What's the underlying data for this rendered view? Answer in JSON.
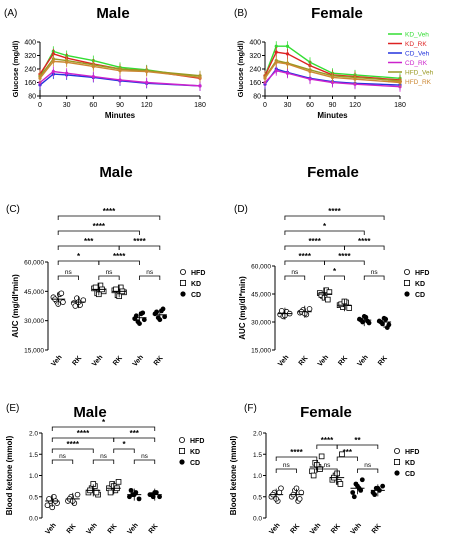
{
  "panels": [
    {
      "id": "A",
      "letter": "(A)",
      "title": "Male"
    },
    {
      "id": "B",
      "letter": "(B)",
      "title": "Female"
    },
    {
      "id": "C",
      "letter": "(C)",
      "title": "Male"
    },
    {
      "id": "D",
      "letter": "(D)",
      "title": "Female"
    },
    {
      "id": "E",
      "letter": "(E)",
      "title": "Male"
    },
    {
      "id": "F",
      "letter": "(F)",
      "title": "Female"
    }
  ],
  "legend_lines": [
    {
      "name": "KD_Veh",
      "color": "#33dd33"
    },
    {
      "name": "KD_RK",
      "color": "#dd2222"
    },
    {
      "name": "CD_Veh",
      "color": "#2233dd"
    },
    {
      "name": "CD_RK",
      "color": "#cc22cc"
    },
    {
      "name": "HFD_Veh",
      "color": "#999922"
    },
    {
      "name": "HFD_RK",
      "color": "#cc8833"
    }
  ],
  "legend_groups": [
    {
      "name": "HFD",
      "marker": "circle-open"
    },
    {
      "name": "KD",
      "marker": "square-open"
    },
    {
      "name": "CD",
      "marker": "circle-filled"
    }
  ],
  "chart_data": [
    {
      "panel": "A",
      "type": "line",
      "xlabel": "Minutes",
      "ylabel": "Glucose (mg/dl)",
      "x": [
        0,
        15,
        30,
        60,
        90,
        120,
        180
      ],
      "xticks": [
        0,
        30,
        60,
        90,
        120,
        180
      ],
      "yticks": [
        80,
        160,
        240,
        320,
        400
      ],
      "xlim": [
        0,
        180
      ],
      "ylim": [
        80,
        400
      ],
      "series": [
        {
          "name": "KD_Veh",
          "color": "#33dd33",
          "values": [
            200,
            345,
            320,
            290,
            250,
            235,
            190
          ]
        },
        {
          "name": "KD_RK",
          "color": "#dd2222",
          "values": [
            210,
            330,
            305,
            270,
            240,
            230,
            185
          ]
        },
        {
          "name": "CD_Veh",
          "color": "#2233dd",
          "values": [
            145,
            210,
            205,
            190,
            170,
            155,
            140
          ]
        },
        {
          "name": "CD_RK",
          "color": "#cc22cc",
          "values": [
            160,
            225,
            215,
            195,
            175,
            160,
            140
          ]
        },
        {
          "name": "HFD_Veh",
          "color": "#999922",
          "values": [
            195,
            300,
            290,
            265,
            240,
            230,
            200
          ]
        },
        {
          "name": "HFD_RK",
          "color": "#cc8833",
          "values": [
            185,
            285,
            280,
            255,
            230,
            225,
            190
          ]
        }
      ]
    },
    {
      "panel": "B",
      "type": "line",
      "xlabel": "Minutes",
      "ylabel": "Glucose (mg/dl)",
      "x": [
        0,
        15,
        30,
        60,
        90,
        120,
        180
      ],
      "xticks": [
        0,
        30,
        60,
        90,
        120,
        180
      ],
      "yticks": [
        80,
        160,
        240,
        320,
        400
      ],
      "xlim": [
        0,
        180
      ],
      "ylim": [
        80,
        400
      ],
      "series": [
        {
          "name": "KD_Veh",
          "color": "#33dd33",
          "values": [
            200,
            375,
            375,
            280,
            215,
            205,
            185
          ]
        },
        {
          "name": "KD_RK",
          "color": "#dd2222",
          "values": [
            200,
            340,
            330,
            260,
            205,
            195,
            175
          ]
        },
        {
          "name": "CD_Veh",
          "color": "#2233dd",
          "values": [
            150,
            240,
            220,
            185,
            165,
            155,
            145
          ]
        },
        {
          "name": "CD_RK",
          "color": "#cc22cc",
          "values": [
            160,
            230,
            215,
            180,
            160,
            150,
            135
          ]
        },
        {
          "name": "HFD_Veh",
          "color": "#999922",
          "values": [
            190,
            290,
            275,
            235,
            200,
            190,
            170
          ]
        },
        {
          "name": "HFD_RK",
          "color": "#cc8833",
          "values": [
            185,
            280,
            270,
            225,
            190,
            180,
            160
          ]
        }
      ]
    },
    {
      "panel": "C",
      "type": "scatter",
      "ylabel": "AUC (mg/dl*min)",
      "categories": [
        "Veh",
        "RK",
        "Veh",
        "RK",
        "Veh",
        "RK"
      ],
      "groups": [
        "HFD",
        "HFD",
        "KD",
        "KD",
        "CD",
        "CD"
      ],
      "yticks": [
        15000,
        30000,
        45000,
        60000
      ],
      "ytick_labels": [
        "15,000",
        "30,000",
        "45,000",
        "60,000"
      ],
      "ylim": [
        15000,
        60000
      ],
      "means": [
        41000,
        39500,
        46000,
        45000,
        31500,
        33000
      ],
      "points": [
        [
          42000,
          40000,
          43500,
          39500,
          41000,
          38500,
          44000
        ],
        [
          39000,
          41500,
          38000,
          40500,
          37500,
          39500
        ],
        [
          46500,
          44000,
          48000,
          45000,
          47000,
          43500,
          46000
        ],
        [
          45500,
          43000,
          47000,
          44500,
          46000,
          42500,
          45000
        ],
        [
          31000,
          29500,
          33500,
          30500,
          32500,
          28500,
          34000
        ],
        [
          33500,
          31500,
          35000,
          32000,
          34500,
          30500,
          36000
        ]
      ],
      "sig": [
        {
          "from": 0,
          "to": 1,
          "label": "ns",
          "level": 0
        },
        {
          "from": 2,
          "to": 3,
          "label": "ns",
          "level": 0
        },
        {
          "from": 4,
          "to": 5,
          "label": "ns",
          "level": 0
        },
        {
          "from": 0,
          "to": 2,
          "label": "*",
          "level": 1
        },
        {
          "from": 2,
          "to": 4,
          "label": "****",
          "level": 1
        },
        {
          "from": 0,
          "to": 3,
          "label": "***",
          "level": 2
        },
        {
          "from": 3,
          "to": 5,
          "label": "****",
          "level": 2
        },
        {
          "from": 0,
          "to": 4,
          "label": "****",
          "level": 3
        },
        {
          "from": 0,
          "to": 5,
          "label": "****",
          "level": 4
        }
      ]
    },
    {
      "panel": "D",
      "type": "scatter",
      "ylabel": "AUC (mg/dl*min)",
      "categories": [
        "Veh",
        "RK",
        "Veh",
        "RK",
        "Veh",
        "RK"
      ],
      "groups": [
        "HFD",
        "HFD",
        "KD",
        "KD",
        "CD",
        "CD"
      ],
      "yticks": [
        15000,
        30000,
        45000,
        60000
      ],
      "ytick_labels": [
        "15,000",
        "30,000",
        "45,000",
        "60,000"
      ],
      "ylim": [
        15000,
        60000
      ],
      "means": [
        34500,
        35500,
        45000,
        39000,
        31000,
        30000
      ],
      "points": [
        [
          34000,
          33000,
          35500,
          34500,
          36000,
          33500
        ],
        [
          35000,
          36500,
          34000,
          37000,
          35500,
          34500
        ],
        [
          45500,
          44000,
          47000,
          46000,
          44500,
          43000,
          42000
        ],
        [
          39000,
          38000,
          40500,
          37500,
          39500,
          41000
        ],
        [
          31500,
          30000,
          32500,
          29500,
          31000,
          33000,
          30500
        ],
        [
          30500,
          29000,
          31500,
          28500,
          30000,
          32000,
          27000
        ]
      ],
      "sig": [
        {
          "from": 0,
          "to": 1,
          "label": "ns",
          "level": 0
        },
        {
          "from": 2,
          "to": 3,
          "label": "*",
          "level": 0
        },
        {
          "from": 4,
          "to": 5,
          "label": "ns",
          "level": 0
        },
        {
          "from": 0,
          "to": 2,
          "label": "****",
          "level": 1
        },
        {
          "from": 2,
          "to": 4,
          "label": "****",
          "level": 1
        },
        {
          "from": 0,
          "to": 3,
          "label": "****",
          "level": 2
        },
        {
          "from": 3,
          "to": 5,
          "label": "****",
          "level": 2
        },
        {
          "from": 0,
          "to": 4,
          "label": "*",
          "level": 3
        },
        {
          "from": 0,
          "to": 5,
          "label": "****",
          "level": 4
        }
      ]
    },
    {
      "panel": "E",
      "type": "scatter",
      "ylabel": "Blood ketone (mmol)",
      "categories": [
        "Veh",
        "RK",
        "Veh",
        "RK",
        "Veh",
        "RK"
      ],
      "groups": [
        "HFD",
        "HFD",
        "KD",
        "KD",
        "CD",
        "CD"
      ],
      "yticks": [
        0.0,
        0.5,
        1.0,
        1.5,
        2.0
      ],
      "ytick_labels": [
        "0.0",
        "0.5",
        "1.0",
        "1.5",
        "2.0"
      ],
      "ylim": [
        0,
        2.0
      ],
      "means": [
        0.4,
        0.45,
        0.65,
        0.7,
        0.55,
        0.55
      ],
      "points": [
        [
          0.3,
          0.4,
          0.5,
          0.35,
          0.45,
          0.25,
          0.4
        ],
        [
          0.4,
          0.5,
          0.35,
          0.55,
          0.45,
          0.4
        ],
        [
          0.6,
          0.7,
          0.75,
          0.55,
          0.65,
          0.8,
          0.6
        ],
        [
          0.7,
          0.8,
          0.65,
          0.85,
          0.6,
          0.75,
          0.7
        ],
        [
          0.5,
          0.55,
          0.6,
          0.45,
          0.65,
          0.55
        ],
        [
          0.55,
          0.5,
          0.6,
          0.5,
          0.55,
          0.6
        ]
      ],
      "sig": [
        {
          "from": 0,
          "to": 1,
          "label": "ns",
          "level": 0
        },
        {
          "from": 2,
          "to": 3,
          "label": "ns",
          "level": 0
        },
        {
          "from": 4,
          "to": 5,
          "label": "ns",
          "level": 0
        },
        {
          "from": 0,
          "to": 2,
          "label": "****",
          "level": 1
        },
        {
          "from": 3,
          "to": 4,
          "label": "*",
          "level": 1
        },
        {
          "from": 0,
          "to": 3,
          "label": "****",
          "level": 2
        },
        {
          "from": 3,
          "to": 5,
          "label": "***",
          "level": 2
        },
        {
          "from": 0,
          "to": 5,
          "label": "*",
          "level": 3
        }
      ]
    },
    {
      "panel": "F",
      "type": "scatter",
      "ylabel": "Blood ketone (mmol)",
      "categories": [
        "Veh",
        "RK",
        "Veh",
        "RK",
        "Veh",
        "RK"
      ],
      "groups": [
        "HFD",
        "HFD",
        "KD",
        "KD",
        "CD",
        "CD"
      ],
      "yticks": [
        0.0,
        0.5,
        1.0,
        1.5,
        2.0
      ],
      "ytick_labels": [
        "0.0",
        "0.5",
        "1.0",
        "1.5",
        "2.0"
      ],
      "ylim": [
        0,
        2.0
      ],
      "means": [
        0.55,
        0.55,
        1.2,
        0.95,
        0.7,
        0.65
      ],
      "points": [
        [
          0.5,
          0.6,
          0.4,
          0.7,
          0.55,
          0.45,
          0.6
        ],
        [
          0.5,
          0.65,
          0.4,
          0.6,
          0.55,
          0.7,
          0.45
        ],
        [
          1.1,
          1.3,
          1.2,
          1.45,
          1.0,
          1.25,
          1.15
        ],
        [
          0.9,
          1.0,
          0.85,
          1.5,
          0.95,
          1.05,
          0.8
        ],
        [
          0.6,
          0.8,
          0.7,
          0.9,
          0.5,
          0.75,
          0.65
        ],
        [
          0.6,
          0.7,
          0.65,
          0.75,
          0.55,
          0.7
        ]
      ],
      "sig": [
        {
          "from": 0,
          "to": 1,
          "label": "ns",
          "level": 0
        },
        {
          "from": 2,
          "to": 3,
          "label": "ns",
          "level": 0
        },
        {
          "from": 4,
          "to": 5,
          "label": "ns",
          "level": 0
        },
        {
          "from": 0,
          "to": 2,
          "label": "****",
          "level": 1
        },
        {
          "from": 3,
          "to": 4,
          "label": "***",
          "level": 1
        },
        {
          "from": 2,
          "to": 3,
          "label": "****",
          "level": 2
        },
        {
          "from": 3,
          "to": 5,
          "label": "**",
          "level": 2
        }
      ]
    }
  ]
}
